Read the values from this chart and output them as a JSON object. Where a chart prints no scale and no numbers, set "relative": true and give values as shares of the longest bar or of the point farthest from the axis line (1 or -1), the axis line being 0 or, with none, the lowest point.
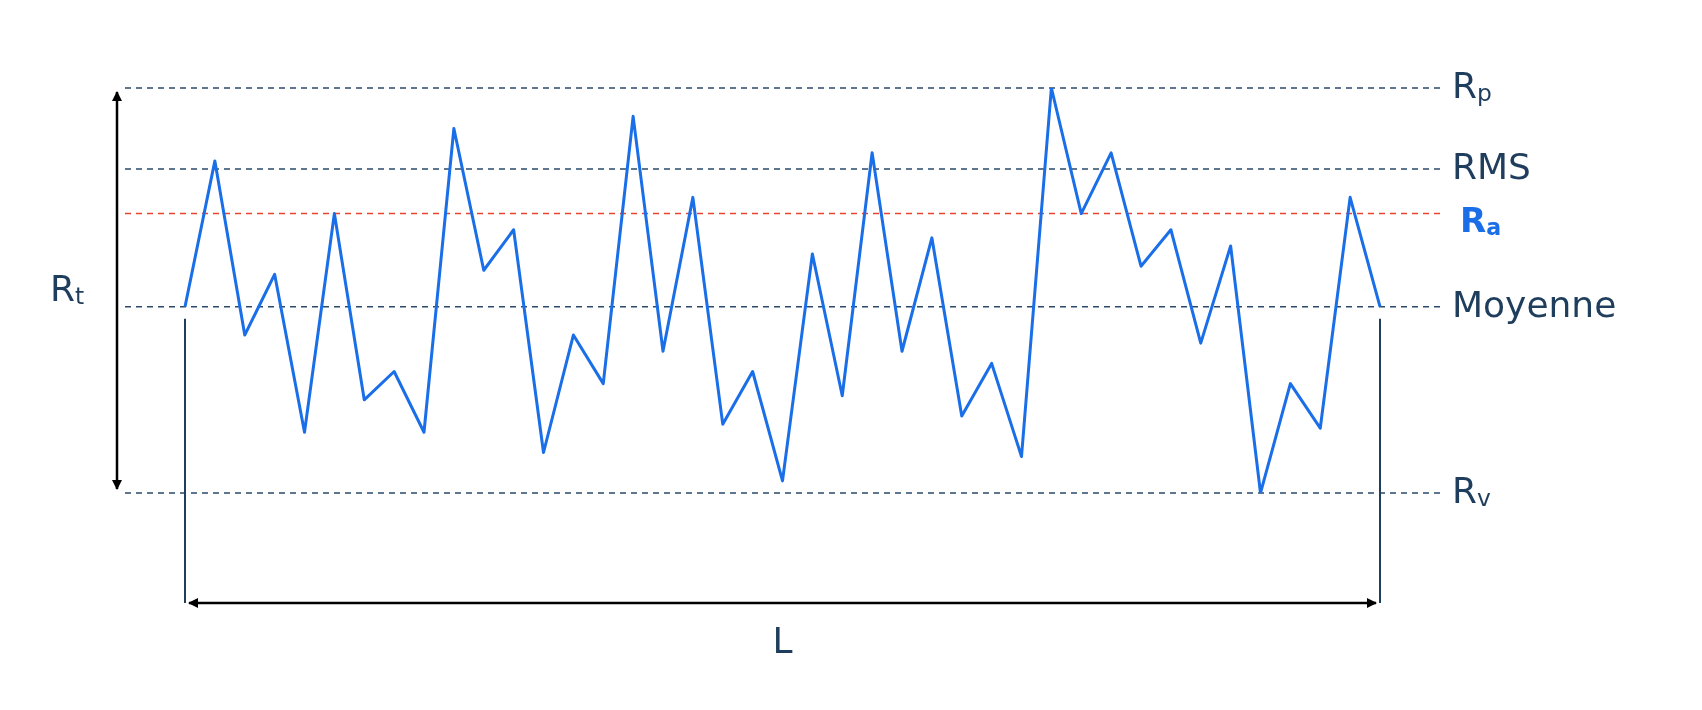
{
  "chart_data": {
    "type": "line",
    "relative": true,
    "tick_labels": false,
    "grid": false,
    "legend": false,
    "marker": "none",
    "line_style": "solid",
    "categories": [
      null,
      null,
      null,
      null,
      null,
      null,
      null,
      null,
      null,
      null,
      null,
      null,
      null,
      null,
      null,
      null,
      null,
      null,
      null,
      null,
      null,
      null,
      null,
      null,
      null,
      null,
      null,
      null,
      null,
      null,
      null,
      null,
      null,
      null,
      null,
      null,
      null,
      null,
      null,
      null,
      null
    ],
    "series": [
      {
        "color": "#1a6fe8",
        "values": [
          0.46,
          0.82,
          0.39,
          0.54,
          0.15,
          0.69,
          0.23,
          0.3,
          0.15,
          0.9,
          0.55,
          0.65,
          0.1,
          0.39,
          0.27,
          0.93,
          0.35,
          0.73,
          0.17,
          0.3,
          0.03,
          0.59,
          0.24,
          0.84,
          0.35,
          0.63,
          0.19,
          0.32,
          0.09,
          1,
          0.69,
          0.84,
          0.56,
          0.65,
          0.37,
          0.61,
          0,
          0.27,
          0.16,
          0.73,
          0.46
        ]
      }
    ],
    "ref_lines": [
      {
        "axis": "y",
        "value": 1,
        "label": "R$_{p}$",
        "color": "#2b4a6b",
        "line_style": "dashed"
      },
      {
        "axis": "y",
        "value": 0.8,
        "label": "RMS",
        "color": "#2b4a6b",
        "line_style": "dashed"
      },
      {
        "axis": "y",
        "value": 0.69,
        "label": "R$_{a}$",
        "color": "#e8432e",
        "line_style": "dashed"
      },
      {
        "axis": "y",
        "value": 0.46,
        "label": "Moyenne",
        "color": "#2b4a6b",
        "line_style": "dashed"
      },
      {
        "axis": "y",
        "value": 0,
        "label": "R$_{v}$",
        "color": "#2b4a6b",
        "line_style": "dashed"
      }
    ],
    "annotations": [
      "R$_{t}$",
      "L"
    ]
  }
}
